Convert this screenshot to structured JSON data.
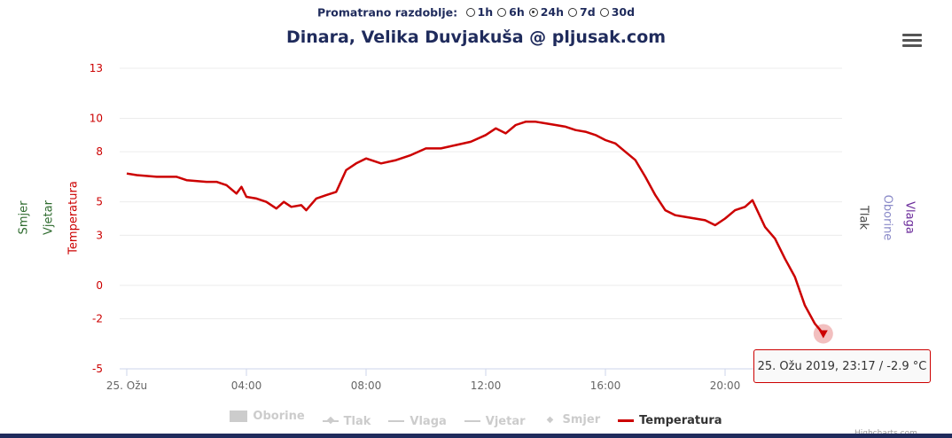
{
  "period": {
    "label": "Promatrano razdoblje:",
    "options": [
      {
        "label": "1h",
        "selected": false
      },
      {
        "label": "6h",
        "selected": false
      },
      {
        "label": "24h",
        "selected": true
      },
      {
        "label": "7d",
        "selected": false
      },
      {
        "label": "30d",
        "selected": false
      }
    ]
  },
  "menu_icon": "hamburger-menu-icon",
  "credit": "Highcharts.com",
  "tooltip": {
    "text": "25. Ožu 2019, 23:17 / -2.9 °C"
  },
  "colors": {
    "temperature": "#cc0000",
    "title": "#1f2b5c",
    "smjer": "#2e6b2e",
    "vjetar": "#2e6b2e",
    "tlak": "#444444",
    "oborine": "#8a8ac8",
    "vlaga": "#6a2a9a"
  },
  "legend": [
    {
      "label": "Oborine",
      "active": false,
      "symbol": "square"
    },
    {
      "label": "Tlak",
      "active": false,
      "symbol": "line-diamond"
    },
    {
      "label": "Vlaga",
      "active": false,
      "symbol": "line"
    },
    {
      "label": "Vjetar",
      "active": false,
      "symbol": "line"
    },
    {
      "label": "Smjer",
      "active": false,
      "symbol": "diamond"
    },
    {
      "label": "Temperatura",
      "active": true,
      "symbol": "line"
    }
  ],
  "chart_data": {
    "type": "line",
    "title": "Dinara, Velika Duvjakuša @ pljusak.com",
    "ylabel": "Temperatura",
    "yunit": "°C",
    "ylim": [
      -5,
      13
    ],
    "yticks": [
      13,
      10,
      8,
      5,
      3,
      0,
      -2,
      -5
    ],
    "xticks": [
      "25. Ožu",
      "04:00",
      "08:00",
      "12:00",
      "16:00",
      "20:00"
    ],
    "xlim": [
      "2019-03-25 00:00",
      "2019-03-26 00:00"
    ],
    "other_axes": [
      "Smjer",
      "Vjetar",
      "Tlak",
      "Oborine",
      "Vlaga"
    ],
    "series": [
      {
        "name": "Temperatura",
        "x": [
          "00:00",
          "00:20",
          "01:00",
          "01:40",
          "02:00",
          "02:40",
          "03:00",
          "03:20",
          "03:40",
          "03:50",
          "04:00",
          "04:20",
          "04:40",
          "05:00",
          "05:15",
          "05:30",
          "05:50",
          "06:00",
          "06:20",
          "06:40",
          "07:00",
          "07:20",
          "07:40",
          "08:00",
          "08:30",
          "09:00",
          "09:30",
          "10:00",
          "10:30",
          "11:00",
          "11:30",
          "12:00",
          "12:20",
          "12:40",
          "13:00",
          "13:20",
          "13:40",
          "14:00",
          "14:20",
          "14:40",
          "15:00",
          "15:20",
          "15:40",
          "16:00",
          "16:20",
          "16:40",
          "17:00",
          "17:20",
          "17:40",
          "18:00",
          "18:20",
          "18:40",
          "19:00",
          "19:20",
          "19:40",
          "20:00",
          "20:20",
          "20:40",
          "20:55",
          "21:20",
          "21:40",
          "22:00",
          "22:20",
          "22:40",
          "23:00",
          "23:17"
        ],
        "values": [
          6.7,
          6.6,
          6.5,
          6.5,
          6.3,
          6.2,
          6.2,
          6.0,
          5.5,
          5.9,
          5.3,
          5.2,
          5.0,
          4.6,
          5.0,
          4.7,
          4.8,
          4.5,
          5.2,
          5.4,
          5.6,
          6.9,
          7.3,
          7.6,
          7.3,
          7.5,
          7.8,
          8.2,
          8.2,
          8.4,
          8.6,
          9.0,
          9.4,
          9.1,
          9.6,
          9.8,
          9.8,
          9.7,
          9.6,
          9.5,
          9.3,
          9.2,
          9.0,
          8.7,
          8.5,
          8.0,
          7.5,
          6.5,
          5.4,
          4.5,
          4.2,
          4.1,
          4.0,
          3.9,
          3.6,
          4.0,
          4.5,
          4.7,
          5.1,
          3.5,
          2.8,
          1.6,
          0.5,
          -1.2,
          -2.3,
          -2.9
        ]
      }
    ]
  }
}
